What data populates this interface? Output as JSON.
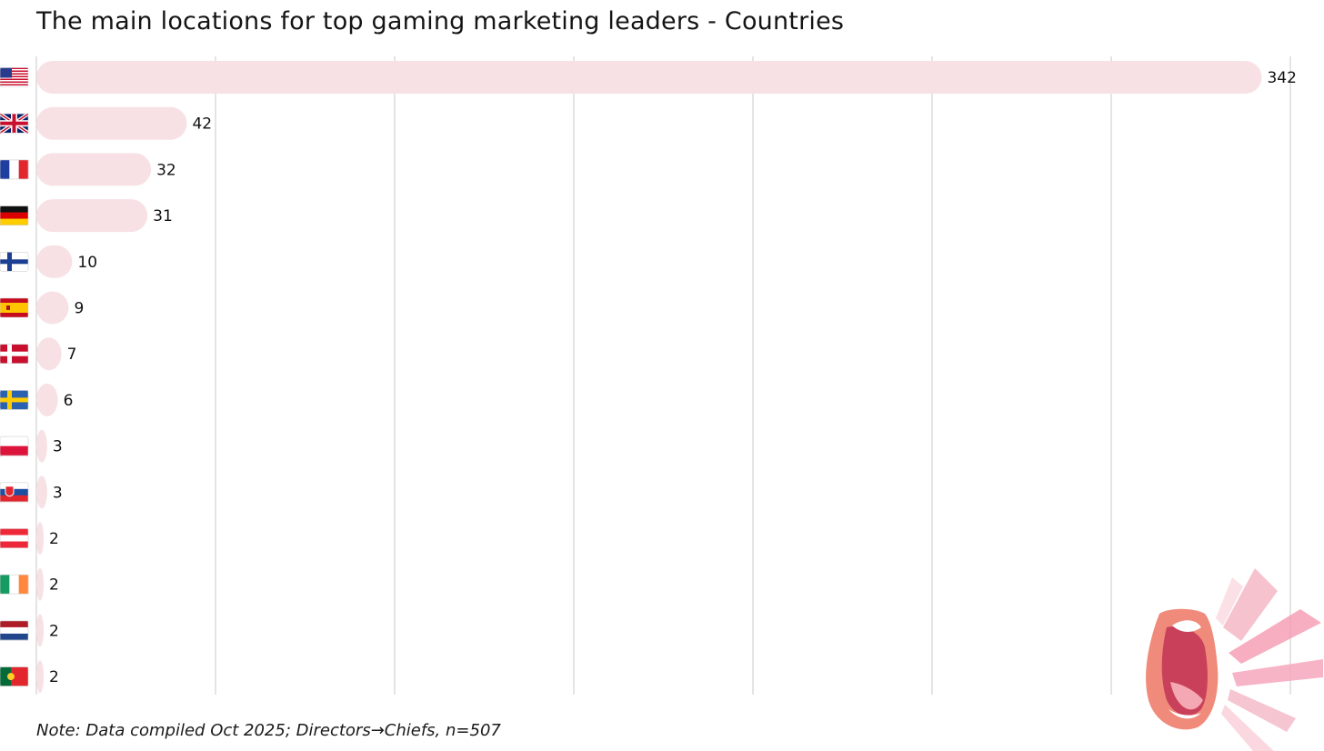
{
  "chart_data": {
    "type": "bar",
    "orientation": "horizontal",
    "title": "The main locations for top gaming marketing leaders - Countries",
    "categories": [
      "United States",
      "United Kingdom",
      "France",
      "Germany",
      "Finland",
      "Spain",
      "Denmark",
      "Sweden",
      "Poland",
      "Slovakia",
      "Austria",
      "Ireland",
      "Netherlands",
      "Portugal"
    ],
    "category_icons": [
      "us-flag-icon",
      "uk-flag-icon",
      "france-flag-icon",
      "germany-flag-icon",
      "finland-flag-icon",
      "spain-flag-icon",
      "denmark-flag-icon",
      "sweden-flag-icon",
      "poland-flag-icon",
      "slovakia-flag-icon",
      "austria-flag-icon",
      "ireland-flag-icon",
      "netherlands-flag-icon",
      "portugal-flag-icon"
    ],
    "values": [
      342,
      42,
      32,
      31,
      10,
      9,
      7,
      6,
      3,
      3,
      2,
      2,
      2,
      2
    ],
    "xlim": [
      0,
      350
    ],
    "x_gridlines": [
      50,
      100,
      150,
      200,
      250,
      300,
      350
    ],
    "grid": true,
    "data_labels": true,
    "legend": "none",
    "bar_color": "#f7e1e5",
    "grid_color": "#c8c8c8"
  },
  "note": "Note: Data compiled Oct 2025; Directors→Chiefs, n=507",
  "decoration": "open-mouth-shouting-illustration"
}
